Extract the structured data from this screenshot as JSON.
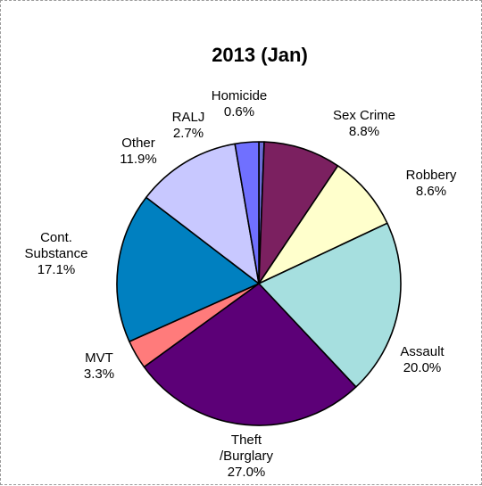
{
  "chart_data": {
    "type": "pie",
    "title": "2013 (Jan)",
    "slices": [
      {
        "name": "Homicide",
        "label_lines": [
          "Homicide"
        ],
        "value": 0.6,
        "pct_label": "0.6%",
        "color": "#6b6bd6"
      },
      {
        "name": "Sex Crime",
        "label_lines": [
          "Sex Crime"
        ],
        "value": 8.8,
        "pct_label": "8.8%",
        "color": "#7b2060"
      },
      {
        "name": "Robbery",
        "label_lines": [
          "Robbery"
        ],
        "value": 8.6,
        "pct_label": "8.6%",
        "color": "#ffffcc"
      },
      {
        "name": "Assault",
        "label_lines": [
          "Assault"
        ],
        "value": 20.0,
        "pct_label": "20.0%",
        "color": "#a6dfdf"
      },
      {
        "name": "Theft /Burglary",
        "label_lines": [
          "Theft",
          "/Burglary"
        ],
        "value": 27.0,
        "pct_label": "27.0%",
        "color": "#5c0077"
      },
      {
        "name": "MVT",
        "label_lines": [
          "MVT"
        ],
        "value": 3.3,
        "pct_label": "3.3%",
        "color": "#ff7b7b"
      },
      {
        "name": "Cont. Substance",
        "label_lines": [
          "Cont.",
          "Substance"
        ],
        "value": 17.1,
        "pct_label": "17.1%",
        "color": "#0080c0"
      },
      {
        "name": "Other",
        "label_lines": [
          "Other"
        ],
        "value": 11.9,
        "pct_label": "11.9%",
        "color": "#c8c8ff"
      },
      {
        "name": "RALJ",
        "label_lines": [
          "RALJ"
        ],
        "value": 2.7,
        "pct_label": "2.7%",
        "color": "#7070ff"
      }
    ],
    "start": "top",
    "direction": "clockwise"
  }
}
